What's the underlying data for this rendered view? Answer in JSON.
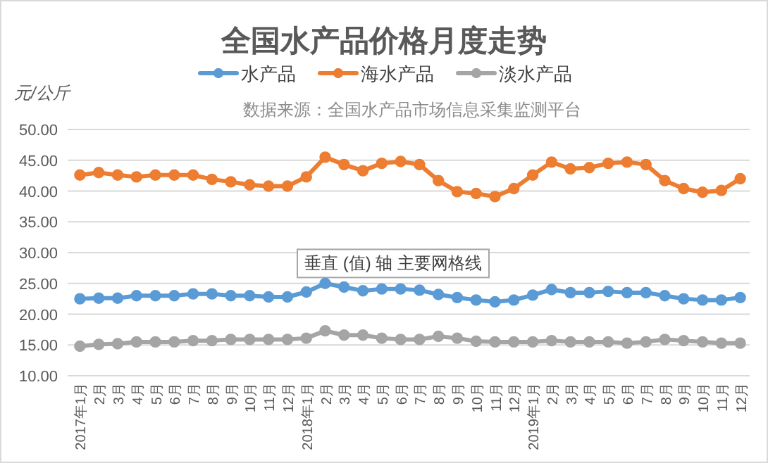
{
  "chart_data": {
    "type": "line",
    "title": "全国水产品价格月度走势",
    "ylabel": "元/公斤",
    "annotations": [
      "数据来源：全国水产品市场信息采集监测平台",
      "垂直 (值) 轴 主要网格线"
    ],
    "categories": [
      "2017年1月",
      "2月",
      "3月",
      "4月",
      "5月",
      "6月",
      "7月",
      "8月",
      "9月",
      "10月",
      "11月",
      "12月",
      "2018年1月",
      "2月",
      "3月",
      "4月",
      "5月",
      "6月",
      "7月",
      "8月",
      "9月",
      "10月",
      "11月",
      "12月",
      "2019年1月",
      "2月",
      "3月",
      "4月",
      "5月",
      "6月",
      "7月",
      "8月",
      "9月",
      "10月",
      "11月",
      "12月"
    ],
    "series": [
      {
        "name": "水产品",
        "color": "#5b9bd5",
        "values": [
          22.5,
          22.6,
          22.6,
          23.0,
          23.0,
          23.0,
          23.3,
          23.3,
          23.0,
          23.0,
          22.8,
          22.8,
          23.6,
          25.0,
          24.4,
          23.8,
          24.1,
          24.1,
          23.9,
          23.2,
          22.7,
          22.3,
          22.0,
          22.3,
          23.1,
          24.0,
          23.5,
          23.5,
          23.7,
          23.5,
          23.5,
          23.0,
          22.5,
          22.3,
          22.3,
          22.7
        ]
      },
      {
        "name": "海水产品",
        "color": "#ed7d31",
        "values": [
          42.6,
          43.0,
          42.6,
          42.3,
          42.6,
          42.6,
          42.6,
          41.9,
          41.5,
          41.0,
          40.8,
          40.8,
          42.3,
          45.5,
          44.3,
          43.3,
          44.5,
          44.8,
          44.3,
          41.7,
          39.9,
          39.6,
          39.1,
          40.4,
          42.6,
          44.7,
          43.6,
          43.8,
          44.5,
          44.7,
          44.3,
          41.7,
          40.4,
          39.8,
          40.1,
          42.0
        ]
      },
      {
        "name": "淡水产品",
        "color": "#a5a5a5",
        "values": [
          14.8,
          15.1,
          15.2,
          15.5,
          15.5,
          15.5,
          15.7,
          15.7,
          15.9,
          15.9,
          15.9,
          15.9,
          16.1,
          17.3,
          16.6,
          16.6,
          16.1,
          15.9,
          15.9,
          16.4,
          16.1,
          15.6,
          15.5,
          15.5,
          15.5,
          15.7,
          15.5,
          15.5,
          15.5,
          15.3,
          15.5,
          15.9,
          15.7,
          15.5,
          15.3,
          15.3
        ]
      }
    ],
    "ylim": [
      10,
      50
    ],
    "yticks": [
      {
        "value": 10,
        "label": "10.00"
      },
      {
        "value": 15,
        "label": "15.00"
      },
      {
        "value": 20,
        "label": "20.00"
      },
      {
        "value": 25,
        "label": "25.00"
      },
      {
        "value": 30,
        "label": "30.00"
      },
      {
        "value": 35,
        "label": "35.00"
      },
      {
        "value": 40,
        "label": "40.00"
      },
      {
        "value": 45,
        "label": "45.00"
      },
      {
        "value": 50,
        "label": "50.00"
      }
    ],
    "grid": "y",
    "legend": "top",
    "marker": "circle",
    "line_style": "solid"
  }
}
